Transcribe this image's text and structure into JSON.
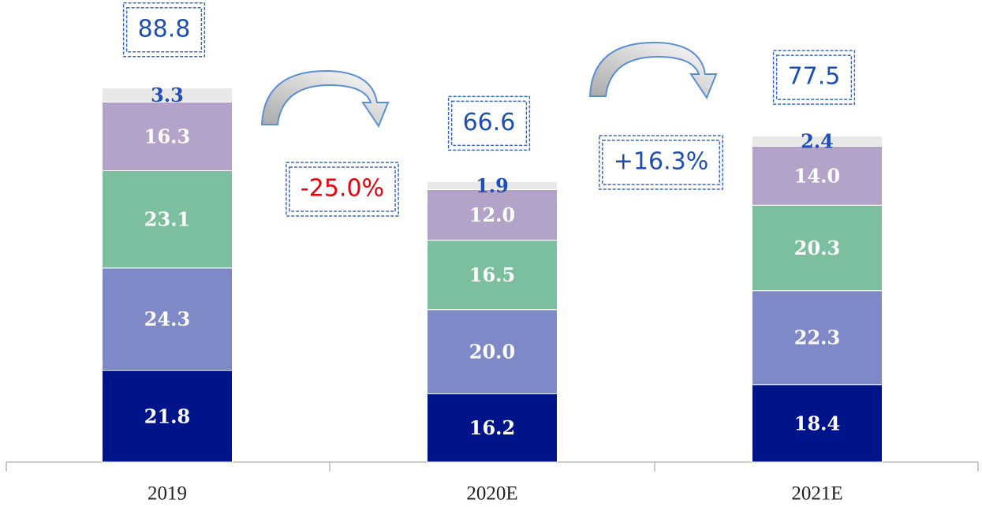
{
  "chart_data": {
    "type": "stacked_bar",
    "categories": [
      "2019",
      "2020E",
      "2021E"
    ],
    "series": [
      {
        "color": "#001489",
        "label_color": "#ffffff",
        "values": [
          21.8,
          16.2,
          18.4
        ],
        "value_labels": [
          "21.8",
          "16.2",
          "18.4"
        ]
      },
      {
        "color": "#7f89c7",
        "label_color": "#ffffff",
        "values": [
          24.3,
          20.0,
          22.3
        ],
        "value_labels": [
          "24.3",
          "20.0",
          "22.3"
        ]
      },
      {
        "color": "#7bbf9e",
        "label_color": "#ffffff",
        "values": [
          23.1,
          16.5,
          20.3
        ],
        "value_labels": [
          "23.1",
          "16.5",
          "20.3"
        ]
      },
      {
        "color": "#b3a3c9",
        "label_color": "#ffffff",
        "values": [
          16.3,
          12.0,
          14.0
        ],
        "value_labels": [
          "16.3",
          "12.0",
          "14.0"
        ]
      },
      {
        "color": "#e8e8e8",
        "label_color": "#1f4eb4",
        "values": [
          3.3,
          1.9,
          2.4
        ],
        "value_labels": [
          "3.3",
          "1.9",
          "2.4"
        ]
      }
    ],
    "totals": [
      88.8,
      66.6,
      77.5
    ],
    "changes": [
      {
        "value": -25.0,
        "label": "-25.0%"
      },
      {
        "value": 16.3,
        "label": "+16.3%"
      }
    ],
    "ylim": [
      0,
      100
    ]
  }
}
